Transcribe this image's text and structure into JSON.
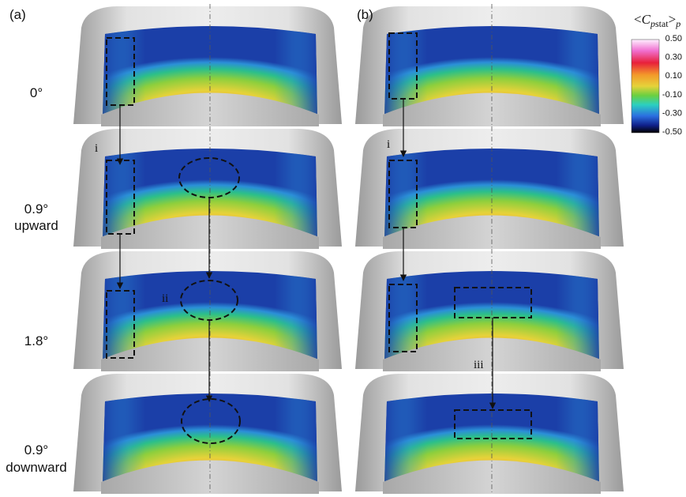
{
  "panel_labels": [
    "(a)",
    "(b)"
  ],
  "rows": [
    {
      "label": [
        "0°"
      ]
    },
    {
      "label": [
        "0.9°",
        "upward"
      ]
    },
    {
      "label": [
        "1.8°"
      ]
    },
    {
      "label": [
        "0.9°",
        "downward"
      ]
    }
  ],
  "colorbar": {
    "title": {
      "open": "<",
      "symbol": "C",
      "sub_italic": "p",
      "sub": "stat",
      "close": ">",
      "outer_sub": "p"
    },
    "ticks": [
      "0.50",
      "0.30",
      "0.10",
      "-0.10",
      "-0.30",
      "-0.50"
    ]
  },
  "annotations": [
    "i",
    "i",
    "ii",
    "iii"
  ]
}
